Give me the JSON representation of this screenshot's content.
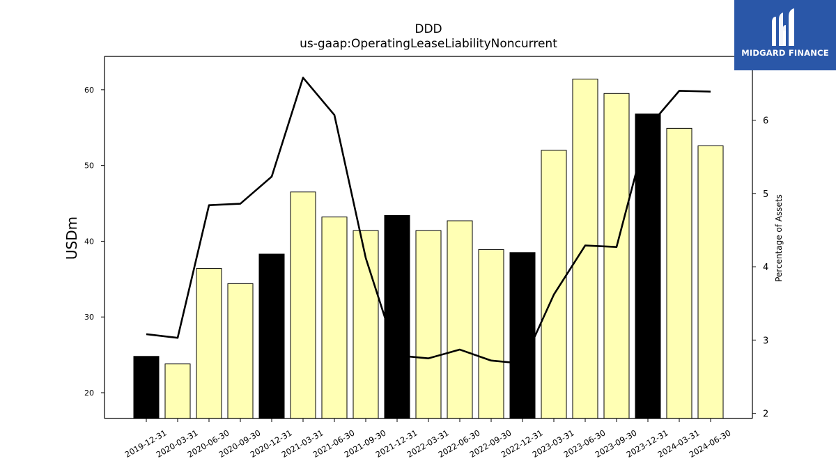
{
  "chart_data": {
    "type": "bar",
    "title": "DDD",
    "subtitle": "us-gaap:OperatingLeaseLiabilityNoncurrent",
    "ylabel": "USDm",
    "y2label": "Percentage of Assets",
    "categories": [
      "2019-12-31",
      "2020-03-31",
      "2020-06-30",
      "2020-09-30",
      "2020-12-31",
      "2021-03-31",
      "2021-06-30",
      "2021-09-30",
      "2021-12-31",
      "2022-03-31",
      "2022-06-30",
      "2022-09-30",
      "2022-12-31",
      "2023-03-31",
      "2023-06-30",
      "2023-09-30",
      "2023-12-31",
      "2024-03-31",
      "2024-06-30"
    ],
    "series": [
      {
        "type": "bar",
        "axis": "left",
        "values": [
          24.8,
          23.8,
          36.4,
          34.4,
          38.3,
          46.5,
          43.2,
          41.4,
          43.4,
          41.4,
          42.7,
          38.9,
          38.5,
          52.0,
          61.4,
          59.5,
          56.8,
          54.9,
          52.6
        ]
      },
      {
        "type": "line",
        "axis": "right",
        "values": [
          3.08,
          3.03,
          4.84,
          4.86,
          5.23,
          6.58,
          6.07,
          4.12,
          2.79,
          2.75,
          2.87,
          2.72,
          2.68,
          3.62,
          4.29,
          4.27,
          5.9,
          6.4,
          6.39
        ]
      }
    ],
    "highlight_categories": [
      "2019-12-31",
      "2020-12-31",
      "2021-12-31",
      "2022-12-31",
      "2023-12-31"
    ],
    "ylim": [
      16.6,
      64.4
    ],
    "y_ticks": [
      20,
      30,
      40,
      50,
      60
    ],
    "y2lim": [
      1.93,
      6.87
    ],
    "y2_ticks": [
      2,
      3,
      4,
      5,
      6
    ],
    "colors": {
      "bar_fill": "#ffffb4",
      "bar_highlight": "#000000",
      "bar_edge": "#000000",
      "line": "#000000"
    },
    "grid": false,
    "legend": "none"
  },
  "logo": {
    "text": "MIDGARD FINANCE",
    "background": "#2a57a8",
    "icon": "midgard-logo-icon"
  }
}
